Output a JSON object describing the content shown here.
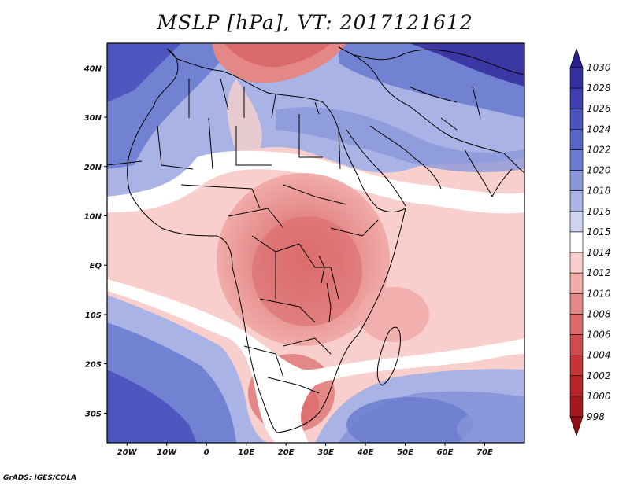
{
  "title": "MSLP [hPa], VT: 2017121612",
  "credit": "GrADS: IGES/COLA",
  "map": {
    "lon_range": [
      -25,
      80
    ],
    "lat_range": [
      -36,
      45
    ],
    "lon_ticks": [
      {
        "value": -20,
        "label": "20W"
      },
      {
        "value": -10,
        "label": "10W"
      },
      {
        "value": 0,
        "label": "0"
      },
      {
        "value": 10,
        "label": "10E"
      },
      {
        "value": 20,
        "label": "20E"
      },
      {
        "value": 30,
        "label": "30E"
      },
      {
        "value": 40,
        "label": "40E"
      },
      {
        "value": 50,
        "label": "50E"
      },
      {
        "value": 60,
        "label": "60E"
      },
      {
        "value": 70,
        "label": "70E"
      }
    ],
    "lat_ticks": [
      {
        "value": 40,
        "label": "40N"
      },
      {
        "value": 30,
        "label": "30N"
      },
      {
        "value": 20,
        "label": "20N"
      },
      {
        "value": 10,
        "label": "10N"
      },
      {
        "value": 0,
        "label": "EQ"
      },
      {
        "value": -10,
        "label": "10S"
      },
      {
        "value": -20,
        "label": "20S"
      },
      {
        "value": -30,
        "label": "30S"
      }
    ]
  },
  "colorbar": {
    "levels": [
      "1030",
      "1028",
      "1026",
      "1024",
      "1022",
      "1020",
      "1018",
      "1016",
      "1015",
      "1014",
      "1012",
      "1010",
      "1008",
      "1006",
      "1004",
      "1002",
      "1000",
      "998"
    ],
    "colors": [
      "#2a1d8e",
      "#35309f",
      "#3f40b0",
      "#4a52bd",
      "#5a66c6",
      "#6b7ccf",
      "#8a97da",
      "#aab3e6",
      "#cfd4f2",
      "#ffffff",
      "#f8cfcc",
      "#f0aaa8",
      "#e48887",
      "#db6a6a",
      "#d14c4e",
      "#c63436",
      "#b7252a",
      "#a5191e",
      "#8e1015"
    ]
  }
}
